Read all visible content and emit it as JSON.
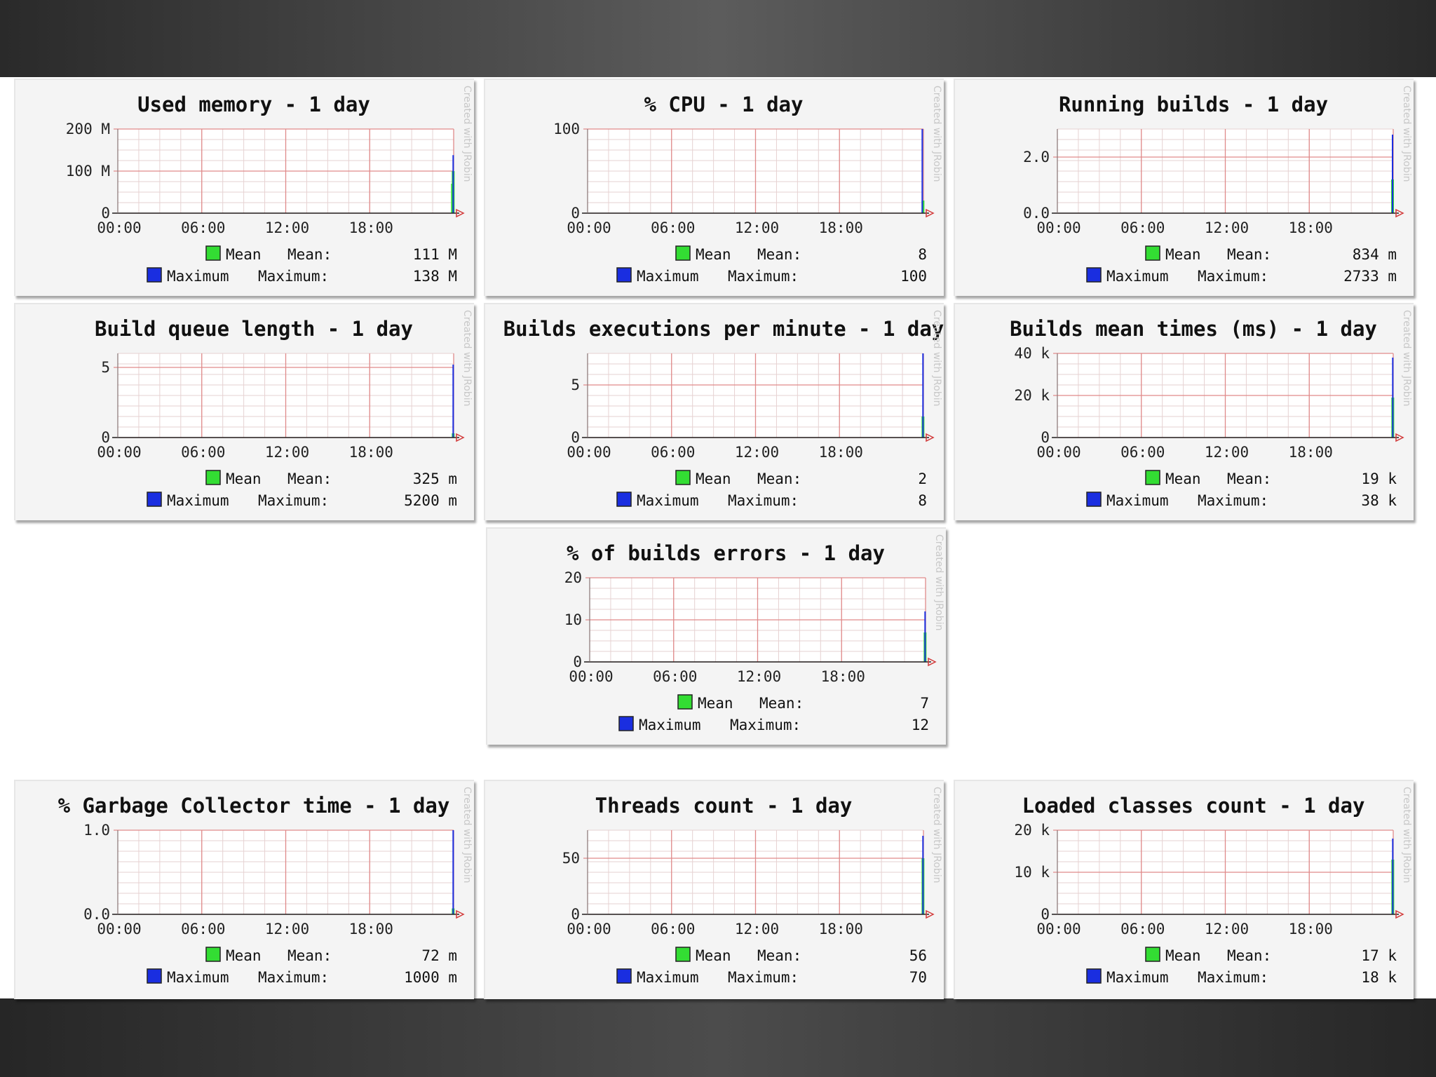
{
  "watermark": "Created with JRobin",
  "legend": {
    "mean_label": "Mean",
    "mean_value_label": "Mean:",
    "max_label": "Maximum",
    "max_value_label": "Maximum:",
    "mean_color": "#33dd33",
    "max_color": "#1a2ee0"
  },
  "chart_data": [
    {
      "type": "line",
      "id": "used-memory",
      "title": "Used memory - 1 day",
      "x_ticks": [
        "00:00",
        "06:00",
        "12:00",
        "18:00"
      ],
      "y_ticks": [
        "0",
        "100 M",
        "200 M"
      ],
      "ylim": [
        0,
        200
      ],
      "grid": true,
      "series": [
        {
          "name": "Mean",
          "legend_value": "111 M",
          "color": "#33dd33",
          "points": [
            {
              "x": "23:55",
              "y": 70
            },
            {
              "x": "23:58",
              "y": 100
            }
          ]
        },
        {
          "name": "Maximum",
          "legend_value": "138 M",
          "color": "#1a2ee0",
          "points": [
            {
              "x": "23:58",
              "y": 138
            }
          ]
        }
      ]
    },
    {
      "type": "line",
      "id": "cpu",
      "title": "% CPU - 1 day",
      "x_ticks": [
        "00:00",
        "06:00",
        "12:00",
        "18:00"
      ],
      "y_ticks": [
        "0",
        "100"
      ],
      "ylim": [
        0,
        100
      ],
      "grid": true,
      "series": [
        {
          "name": "Mean",
          "legend_value": "8",
          "color": "#33dd33",
          "points": [
            {
              "x": "23:58",
              "y": 15
            }
          ]
        },
        {
          "name": "Maximum",
          "legend_value": "100",
          "color": "#1a2ee0",
          "points": [
            {
              "x": "23:55",
              "y": 100
            }
          ]
        }
      ]
    },
    {
      "type": "line",
      "id": "running-builds",
      "title": "Running builds - 1 day",
      "x_ticks": [
        "00:00",
        "06:00",
        "12:00",
        "18:00"
      ],
      "y_ticks": [
        "0.0",
        "2.0"
      ],
      "ylim": [
        0,
        3
      ],
      "grid": true,
      "series": [
        {
          "name": "Mean",
          "legend_value": "834 m",
          "color": "#33dd33",
          "points": [
            {
              "x": "23:57",
              "y": 1.2
            }
          ]
        },
        {
          "name": "Maximum",
          "legend_value": "2733 m",
          "color": "#1a2ee0",
          "points": [
            {
              "x": "23:57",
              "y": 2.8
            }
          ]
        }
      ]
    },
    {
      "type": "line",
      "id": "build-queue-length",
      "title": "Build queue length - 1 day",
      "x_ticks": [
        "00:00",
        "06:00",
        "12:00",
        "18:00"
      ],
      "y_ticks": [
        "0",
        "5"
      ],
      "ylim": [
        0,
        6
      ],
      "grid": true,
      "series": [
        {
          "name": "Mean",
          "legend_value": "325 m",
          "color": "#33dd33",
          "points": [
            {
              "x": "23:58",
              "y": 0.3
            }
          ]
        },
        {
          "name": "Maximum",
          "legend_value": "5200 m",
          "color": "#1a2ee0",
          "points": [
            {
              "x": "23:58",
              "y": 5.2
            }
          ]
        }
      ]
    },
    {
      "type": "line",
      "id": "builds-executions",
      "title": "Builds executions per minute - 1 day",
      "x_ticks": [
        "00:00",
        "06:00",
        "12:00",
        "18:00"
      ],
      "y_ticks": [
        "0",
        "5"
      ],
      "ylim": [
        0,
        8
      ],
      "grid": true,
      "series": [
        {
          "name": "Mean",
          "legend_value": "2",
          "color": "#33dd33",
          "points": [
            {
              "x": "23:58",
              "y": 2
            }
          ]
        },
        {
          "name": "Maximum",
          "legend_value": "8",
          "color": "#1a2ee0",
          "points": [
            {
              "x": "23:58",
              "y": 8
            }
          ]
        }
      ]
    },
    {
      "type": "line",
      "id": "builds-mean-times",
      "title": "Builds mean times (ms) - 1 day",
      "x_ticks": [
        "00:00",
        "06:00",
        "12:00",
        "18:00"
      ],
      "y_ticks": [
        "0",
        "20 k",
        "40 k"
      ],
      "ylim": [
        0,
        40
      ],
      "grid": true,
      "series": [
        {
          "name": "Mean",
          "legend_value": "19 k",
          "color": "#33dd33",
          "points": [
            {
              "x": "23:58",
              "y": 19
            }
          ]
        },
        {
          "name": "Maximum",
          "legend_value": "38 k",
          "color": "#1a2ee0",
          "points": [
            {
              "x": "23:58",
              "y": 38
            }
          ]
        }
      ]
    },
    {
      "type": "line",
      "id": "builds-errors",
      "title": "% of builds errors - 1 day",
      "x_ticks": [
        "00:00",
        "06:00",
        "12:00",
        "18:00"
      ],
      "y_ticks": [
        "0",
        "10",
        "20"
      ],
      "ylim": [
        0,
        20
      ],
      "grid": true,
      "series": [
        {
          "name": "Mean",
          "legend_value": "7",
          "color": "#33dd33",
          "points": [
            {
              "x": "23:58",
              "y": 7
            }
          ]
        },
        {
          "name": "Maximum",
          "legend_value": "12",
          "color": "#1a2ee0",
          "points": [
            {
              "x": "23:58",
              "y": 12
            }
          ]
        }
      ]
    },
    {
      "type": "line",
      "id": "gc-time",
      "title": "% Garbage Collector time - 1 day",
      "x_ticks": [
        "00:00",
        "06:00",
        "12:00",
        "18:00"
      ],
      "y_ticks": [
        "0.0",
        "1.0"
      ],
      "ylim": [
        0,
        1
      ],
      "grid": true,
      "series": [
        {
          "name": "Mean",
          "legend_value": "72 m",
          "color": "#33dd33",
          "points": [
            {
              "x": "23:58",
              "y": 0.07
            }
          ]
        },
        {
          "name": "Maximum",
          "legend_value": "1000 m",
          "color": "#1a2ee0",
          "points": [
            {
              "x": "23:58",
              "y": 1.0
            }
          ]
        }
      ]
    },
    {
      "type": "line",
      "id": "threads-count",
      "title": "Threads count - 1 day",
      "x_ticks": [
        "00:00",
        "06:00",
        "12:00",
        "18:00"
      ],
      "y_ticks": [
        "0",
        "50"
      ],
      "ylim": [
        0,
        75
      ],
      "grid": true,
      "series": [
        {
          "name": "Mean",
          "legend_value": "56",
          "color": "#33dd33",
          "points": [
            {
              "x": "23:58",
              "y": 50
            }
          ]
        },
        {
          "name": "Maximum",
          "legend_value": "70",
          "color": "#1a2ee0",
          "points": [
            {
              "x": "23:58",
              "y": 70
            }
          ]
        }
      ]
    },
    {
      "type": "line",
      "id": "loaded-classes",
      "title": "Loaded classes count - 1 day",
      "x_ticks": [
        "00:00",
        "06:00",
        "12:00",
        "18:00"
      ],
      "y_ticks": [
        "0",
        "10 k",
        "20 k"
      ],
      "ylim": [
        0,
        20
      ],
      "grid": true,
      "series": [
        {
          "name": "Mean",
          "legend_value": "17 k",
          "color": "#33dd33",
          "points": [
            {
              "x": "23:58",
              "y": 13
            }
          ]
        },
        {
          "name": "Maximum",
          "legend_value": "18 k",
          "color": "#1a2ee0",
          "points": [
            {
              "x": "23:58",
              "y": 18
            }
          ]
        }
      ]
    }
  ]
}
